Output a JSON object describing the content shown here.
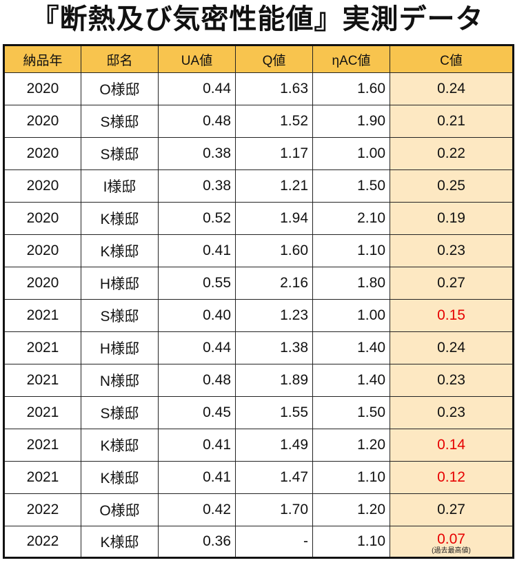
{
  "title": "『断熱及び気密性能値』実測データ",
  "table": {
    "headers": [
      "納品年",
      "邸名",
      "UA値",
      "Q値",
      "ηAC値",
      "C値"
    ],
    "rows": [
      {
        "year": "2020",
        "name": "O様邸",
        "ua": "0.44",
        "q": "1.63",
        "eta": "1.60",
        "c": "0.24",
        "best": false
      },
      {
        "year": "2020",
        "name": "S様邸",
        "ua": "0.48",
        "q": "1.52",
        "eta": "1.90",
        "c": "0.21",
        "best": false
      },
      {
        "year": "2020",
        "name": "S様邸",
        "ua": "0.38",
        "q": "1.17",
        "eta": "1.00",
        "c": "0.22",
        "best": false
      },
      {
        "year": "2020",
        "name": "I様邸",
        "ua": "0.38",
        "q": "1.21",
        "eta": "1.50",
        "c": "0.25",
        "best": false
      },
      {
        "year": "2020",
        "name": "K様邸",
        "ua": "0.52",
        "q": "1.94",
        "eta": "2.10",
        "c": "0.19",
        "best": false
      },
      {
        "year": "2020",
        "name": "K様邸",
        "ua": "0.41",
        "q": "1.60",
        "eta": "1.10",
        "c": "0.23",
        "best": false
      },
      {
        "year": "2020",
        "name": "H様邸",
        "ua": "0.55",
        "q": "2.16",
        "eta": "1.80",
        "c": "0.27",
        "best": false
      },
      {
        "year": "2021",
        "name": "S様邸",
        "ua": "0.40",
        "q": "1.23",
        "eta": "1.00",
        "c": "0.15",
        "best": true
      },
      {
        "year": "2021",
        "name": "H様邸",
        "ua": "0.44",
        "q": "1.38",
        "eta": "1.40",
        "c": "0.24",
        "best": false
      },
      {
        "year": "2021",
        "name": "N様邸",
        "ua": "0.48",
        "q": "1.89",
        "eta": "1.40",
        "c": "0.23",
        "best": false
      },
      {
        "year": "2021",
        "name": "S様邸",
        "ua": "0.45",
        "q": "1.55",
        "eta": "1.50",
        "c": "0.23",
        "best": false
      },
      {
        "year": "2021",
        "name": "K様邸",
        "ua": "0.41",
        "q": "1.49",
        "eta": "1.20",
        "c": "0.14",
        "best": true
      },
      {
        "year": "2021",
        "name": "K様邸",
        "ua": "0.41",
        "q": "1.47",
        "eta": "1.10",
        "c": "0.12",
        "best": true
      },
      {
        "year": "2022",
        "name": "O様邸",
        "ua": "0.42",
        "q": "1.70",
        "eta": "1.20",
        "c": "0.27",
        "best": false
      },
      {
        "year": "2022",
        "name": "K様邸",
        "ua": "0.36",
        "q": "-",
        "eta": "1.10",
        "c": "0.07",
        "best": true,
        "note": "(過去最高値)"
      }
    ]
  },
  "colors": {
    "header_bg": "#f8c44e",
    "c_column_bg": "#fde8c2",
    "highlight_text": "#e60000",
    "border": "#111111"
  }
}
